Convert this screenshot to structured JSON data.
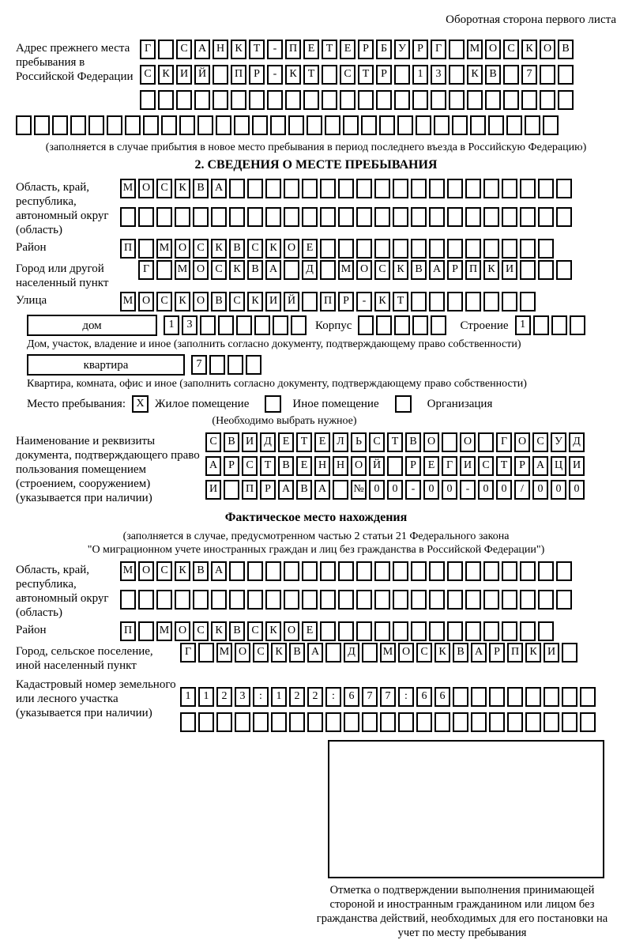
{
  "page": {
    "header_note": "Оборотная сторона первого листа"
  },
  "prev_address": {
    "label": "Адрес прежнего места пребывания в Российской Федерации",
    "row1": [
      "Г",
      "",
      "С",
      "А",
      "Н",
      "К",
      "Т",
      "-",
      "П",
      "Е",
      "Т",
      "Е",
      "Р",
      "Б",
      "У",
      "Р",
      "Г",
      "",
      "М",
      "О",
      "С",
      "К",
      "О",
      "В"
    ],
    "row2": [
      "С",
      "К",
      "И",
      "Й",
      "",
      "П",
      "Р",
      "-",
      "К",
      "Т",
      "",
      "С",
      "Т",
      "Р",
      "",
      "1",
      "3",
      "",
      "К",
      "В",
      "",
      "7",
      "",
      ""
    ],
    "row3": [
      "",
      "",
      "",
      "",
      "",
      "",
      "",
      "",
      "",
      "",
      "",
      "",
      "",
      "",
      "",
      "",
      "",
      "",
      "",
      "",
      "",
      "",
      "",
      ""
    ],
    "row4": [
      "",
      "",
      "",
      "",
      "",
      "",
      "",
      "",
      "",
      "",
      "",
      "",
      "",
      "",
      "",
      "",
      "",
      "",
      "",
      "",
      "",
      "",
      "",
      "",
      "",
      "",
      "",
      "",
      "",
      ""
    ],
    "note": "(заполняется в случае прибытия в новое место пребывания в период последнего въезда в Российскую Федерацию)"
  },
  "section2": {
    "title": "2. СВЕДЕНИЯ О МЕСТЕ ПРЕБЫВАНИЯ",
    "region": {
      "label": "Область, край, республика, автономный округ (область)",
      "row1": [
        "М",
        "О",
        "С",
        "К",
        "В",
        "А",
        "",
        "",
        "",
        "",
        "",
        "",
        "",
        "",
        "",
        "",
        "",
        "",
        "",
        "",
        "",
        "",
        "",
        "",
        ""
      ],
      "row2": [
        "",
        "",
        "",
        "",
        "",
        "",
        "",
        "",
        "",
        "",
        "",
        "",
        "",
        "",
        "",
        "",
        "",
        "",
        "",
        "",
        "",
        "",
        "",
        "",
        ""
      ]
    },
    "district": {
      "label": "Район",
      "cells": [
        "П",
        "",
        "М",
        "О",
        "С",
        "К",
        "В",
        "С",
        "К",
        "О",
        "Е",
        "",
        "",
        "",
        "",
        "",
        "",
        "",
        "",
        "",
        "",
        "",
        "",
        ""
      ]
    },
    "city": {
      "label": "Город или другой населенный пункт",
      "cells": [
        "Г",
        "",
        "М",
        "О",
        "С",
        "К",
        "В",
        "А",
        "",
        "Д",
        "",
        "М",
        "О",
        "С",
        "К",
        "В",
        "А",
        "Р",
        "П",
        "К",
        "И",
        "",
        "",
        ""
      ]
    },
    "street": {
      "label": "Улица",
      "cells": [
        "М",
        "О",
        "С",
        "К",
        "О",
        "В",
        "С",
        "К",
        "И",
        "Й",
        "",
        "П",
        "Р",
        "-",
        "К",
        "Т",
        "",
        "",
        "",
        "",
        "",
        "",
        ""
      ]
    },
    "house": {
      "label": "дом",
      "cells": [
        "1",
        "3",
        "",
        "",
        "",
        "",
        "",
        ""
      ],
      "korpus_label": "Корпус",
      "korpus_cells": [
        "",
        "",
        "",
        "",
        ""
      ],
      "stroenie_label": "Строение",
      "stroenie_cells": [
        "1",
        "",
        "",
        ""
      ],
      "note": "Дом, участок, владение и иное (заполнить согласно документу, подтверждающему право собственности)"
    },
    "apartment": {
      "label": "квартира",
      "cells": [
        "7",
        "",
        "",
        ""
      ],
      "note": "Квартира, комната, офис и иное (заполнить согласно документу, подтверждающему право собственности)"
    },
    "stay": {
      "label": "Место пребывания:",
      "opt1_mark": "X",
      "opt1": "Жилое помещение",
      "opt2_mark": "",
      "opt2": "Иное помещение",
      "opt3_mark": "",
      "opt3": "Организация",
      "note": "(Необходимо выбрать нужное)"
    },
    "doc": {
      "label": "Наименование и реквизиты документа, подтверждающего право пользования помещением (строением, сооружением) (указывается при наличии)",
      "row1": [
        "С",
        "В",
        "И",
        "Д",
        "Е",
        "Т",
        "Е",
        "Л",
        "Ь",
        "С",
        "Т",
        "В",
        "О",
        "",
        "О",
        "",
        "Г",
        "О",
        "С",
        "У",
        "Д"
      ],
      "row2": [
        "А",
        "Р",
        "С",
        "Т",
        "В",
        "Е",
        "Н",
        "Н",
        "О",
        "Й",
        "",
        "Р",
        "Е",
        "Г",
        "И",
        "С",
        "Т",
        "Р",
        "А",
        "Ц",
        "И"
      ],
      "row3": [
        "И",
        "",
        "П",
        "Р",
        "А",
        "В",
        "А",
        "",
        "№",
        "0",
        "0",
        "-",
        "0",
        "0",
        "-",
        "0",
        "0",
        "/",
        "0",
        "0",
        "0"
      ]
    }
  },
  "actual": {
    "title": "Фактическое место нахождения",
    "note1": "(заполняется в случае, предусмотренном частью 2 статьи 21 Федерального закона",
    "note2": "\"О миграционном учете иностранных граждан и лиц без гражданства в Российской Федерации\")",
    "region": {
      "label": "Область, край, республика, автономный округ (область)",
      "row1": [
        "М",
        "О",
        "С",
        "К",
        "В",
        "А",
        "",
        "",
        "",
        "",
        "",
        "",
        "",
        "",
        "",
        "",
        "",
        "",
        "",
        "",
        "",
        "",
        "",
        "",
        ""
      ],
      "row2": [
        "",
        "",
        "",
        "",
        "",
        "",
        "",
        "",
        "",
        "",
        "",
        "",
        "",
        "",
        "",
        "",
        "",
        "",
        "",
        "",
        "",
        "",
        "",
        "",
        ""
      ]
    },
    "district": {
      "label": "Район",
      "cells": [
        "П",
        "",
        "М",
        "О",
        "С",
        "К",
        "В",
        "С",
        "К",
        "О",
        "Е",
        "",
        "",
        "",
        "",
        "",
        "",
        "",
        "",
        "",
        "",
        "",
        "",
        ""
      ]
    },
    "city": {
      "label": "Город, сельское поселение, иной населенный пункт",
      "cells": [
        "Г",
        "",
        "М",
        "О",
        "С",
        "К",
        "В",
        "А",
        "",
        "Д",
        "",
        "М",
        "О",
        "С",
        "К",
        "В",
        "А",
        "Р",
        "П",
        "К",
        "И",
        ""
      ]
    },
    "cadastral": {
      "label": "Кадастровый номер земельного или лесного участка (указывается при наличии)",
      "row1": [
        "1",
        "1",
        "2",
        "3",
        ":",
        "1",
        "2",
        "2",
        ":",
        "6",
        "7",
        "7",
        ":",
        "6",
        "6",
        "",
        "",
        "",
        "",
        "",
        "",
        "",
        ""
      ],
      "row2": [
        "",
        "",
        "",
        "",
        "",
        "",
        "",
        "",
        "",
        "",
        "",
        "",
        "",
        "",
        "",
        "",
        "",
        "",
        "",
        "",
        "",
        "",
        ""
      ]
    },
    "mark_caption": "Отметка о подтверждении выполнения принимающей стороной и иностранным гражданином или лицом без гражданства действий, необходимых для его постановки на учет по месту пребывания"
  }
}
